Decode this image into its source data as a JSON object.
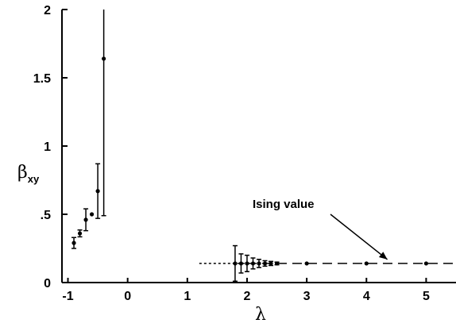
{
  "chart_data": {
    "type": "scatter",
    "title": "",
    "xlabel": "λ",
    "ylabel": "β",
    "ylabel_sub": "xy",
    "xlim": [
      -1.1,
      5.5
    ],
    "ylim": [
      0,
      2
    ],
    "xticks": [
      -1,
      0,
      1,
      2,
      3,
      4,
      5
    ],
    "xtick_labels": [
      "-1",
      "0",
      "1",
      "2",
      "3",
      "4",
      "5"
    ],
    "yticks": [
      0,
      0.5,
      1,
      1.5,
      2
    ],
    "ytick_labels": [
      "0",
      ".5",
      "1",
      "1.5",
      "2"
    ],
    "grid": false,
    "series": [
      {
        "points": [
          {
            "x": -0.9,
            "y": 0.29,
            "err": 0.04
          },
          {
            "x": -0.8,
            "y": 0.36,
            "err": 0.025
          },
          {
            "x": -0.7,
            "y": 0.46,
            "err": 0.08
          },
          {
            "x": -0.6,
            "y": 0.5,
            "err": 0.0
          },
          {
            "x": -0.5,
            "y": 0.67,
            "err": 0.2
          },
          {
            "x": -0.4,
            "y": 1.64,
            "err": 1.15
          },
          {
            "x": 1.8,
            "y": 0.14,
            "err": 0.13
          },
          {
            "x": 1.9,
            "y": 0.14,
            "err": 0.07
          },
          {
            "x": 2.0,
            "y": 0.14,
            "err": 0.06
          },
          {
            "x": 2.1,
            "y": 0.14,
            "err": 0.04
          },
          {
            "x": 2.2,
            "y": 0.14,
            "err": 0.03
          },
          {
            "x": 2.3,
            "y": 0.14,
            "err": 0.02
          },
          {
            "x": 2.4,
            "y": 0.14,
            "err": 0.015
          },
          {
            "x": 2.5,
            "y": 0.14,
            "err": 0.01
          },
          {
            "x": 3.0,
            "y": 0.14,
            "err": 0.0
          },
          {
            "x": 4.0,
            "y": 0.14,
            "err": 0.0
          },
          {
            "x": 5.0,
            "y": 0.14,
            "err": 0.0
          }
        ]
      }
    ],
    "reference_line": {
      "y": 0.14,
      "x_start": 1.2,
      "x_end": 5.5,
      "style": "dashed"
    },
    "annotation": {
      "text": "Ising value",
      "arrow_to": {
        "x": 4.35,
        "y": 0.14
      }
    }
  }
}
